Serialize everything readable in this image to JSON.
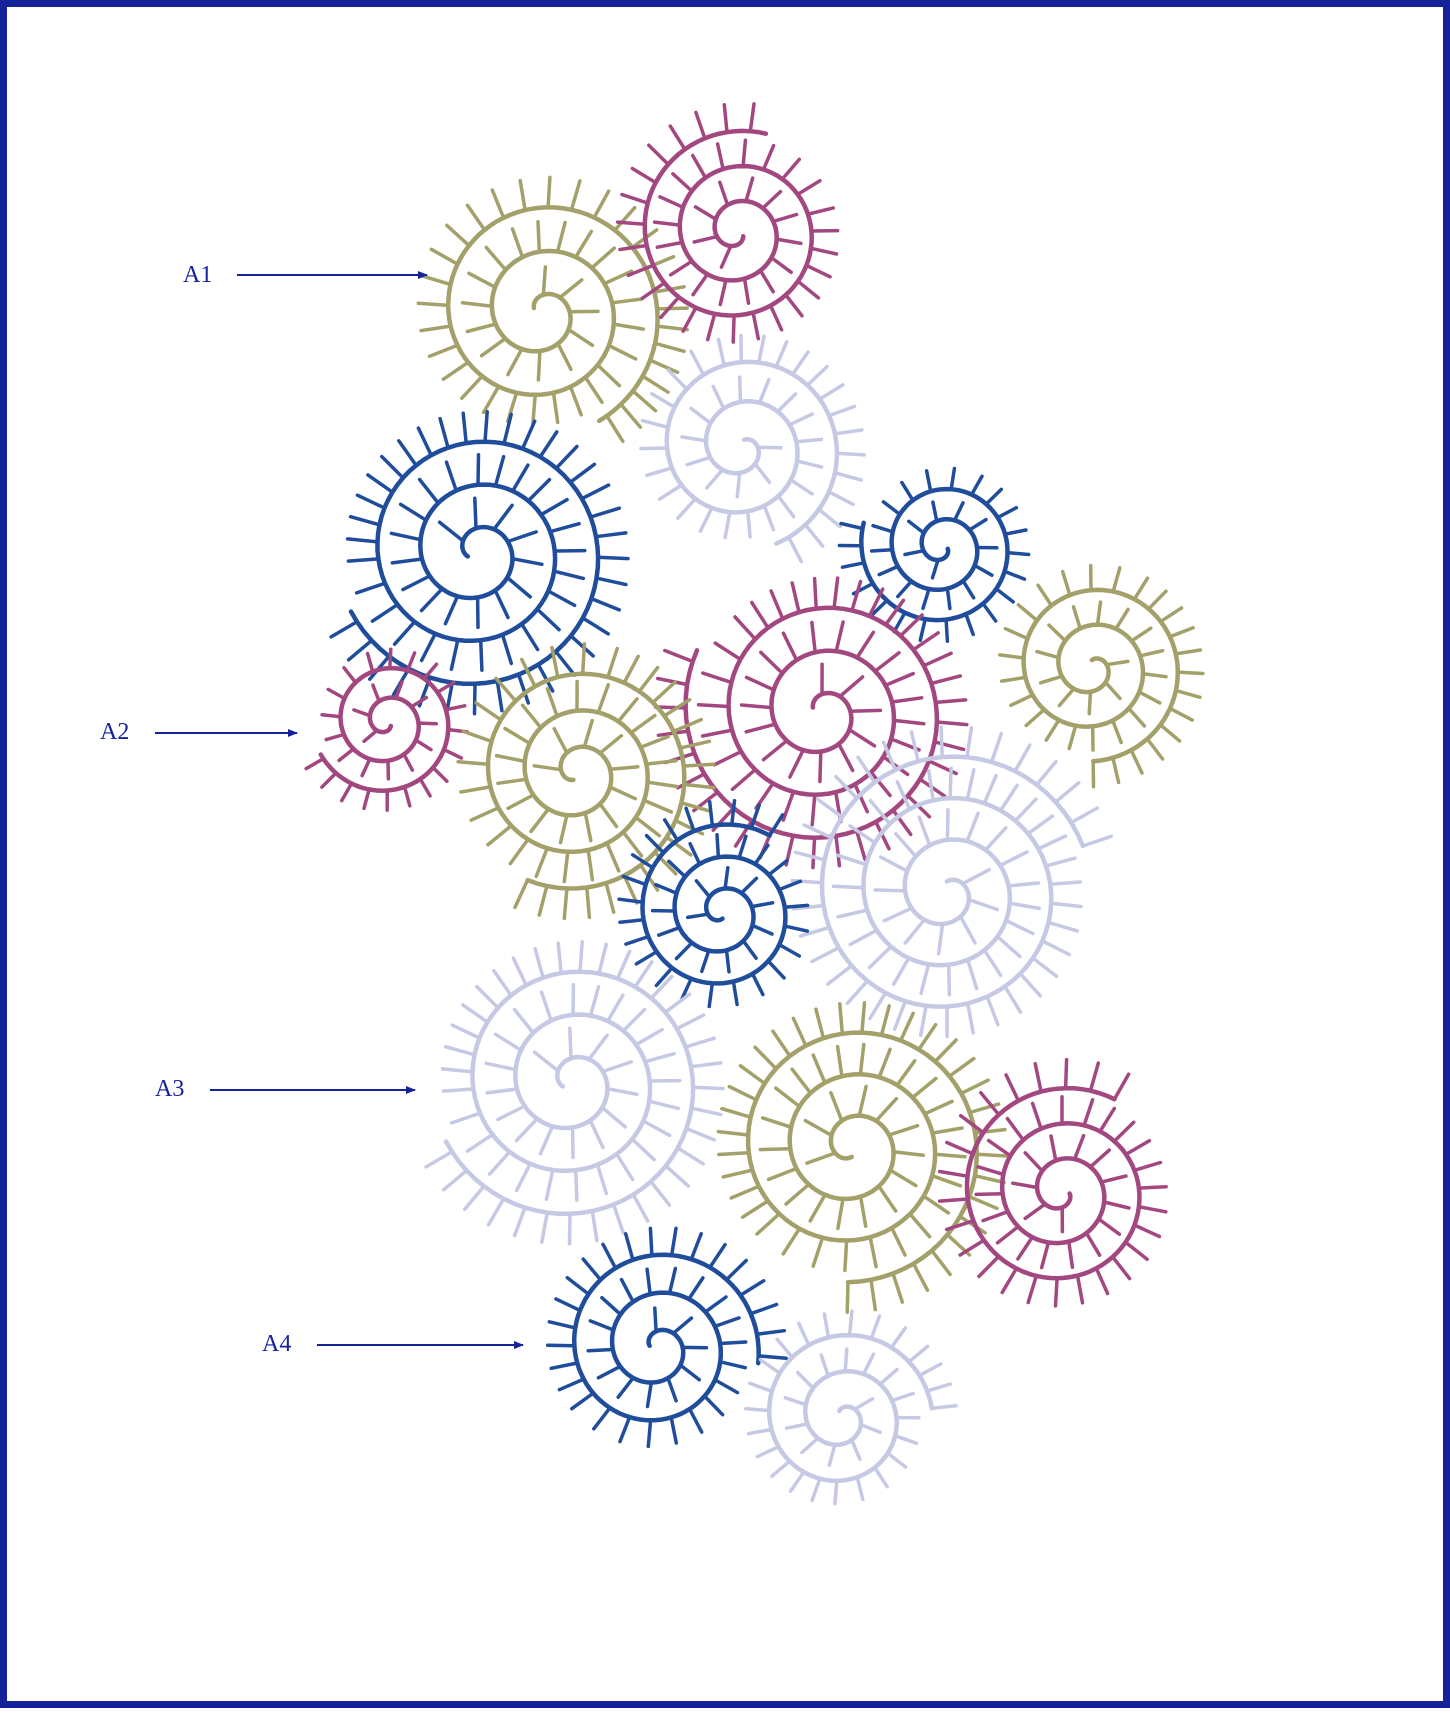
{
  "callouts": [
    {
      "id": "a1",
      "label": "A1"
    },
    {
      "id": "a2",
      "label": "A2"
    },
    {
      "id": "a3",
      "label": "A3"
    },
    {
      "id": "a4",
      "label": "A4"
    }
  ],
  "colors": {
    "frame": "#15239a",
    "callout": "#15239a",
    "olive": "#a3a06a",
    "magenta": "#a2477f",
    "blue": "#1f4d9c",
    "lavender": "#c5c9e4"
  },
  "embroidery": [
    {
      "name": "spiral-olive-top",
      "color": "olive"
    },
    {
      "name": "spiral-magenta-top",
      "color": "magenta"
    },
    {
      "name": "spiral-lavender-top",
      "color": "lavender"
    },
    {
      "name": "spiral-blue-upper-left",
      "color": "blue"
    },
    {
      "name": "spiral-blue-upper-right",
      "color": "blue"
    },
    {
      "name": "spiral-olive-right",
      "color": "olive"
    },
    {
      "name": "spiral-magenta-center",
      "color": "magenta"
    },
    {
      "name": "spiral-magenta-small-left",
      "color": "magenta"
    },
    {
      "name": "spiral-olive-center",
      "color": "olive"
    },
    {
      "name": "spiral-lavender-right",
      "color": "lavender"
    },
    {
      "name": "spiral-blue-center",
      "color": "blue"
    },
    {
      "name": "spiral-lavender-lower-left",
      "color": "lavender"
    },
    {
      "name": "spiral-olive-lower",
      "color": "olive"
    },
    {
      "name": "spiral-magenta-lower-right",
      "color": "magenta"
    },
    {
      "name": "spiral-blue-bottom",
      "color": "blue"
    },
    {
      "name": "spiral-lavender-bottom",
      "color": "lavender"
    }
  ]
}
